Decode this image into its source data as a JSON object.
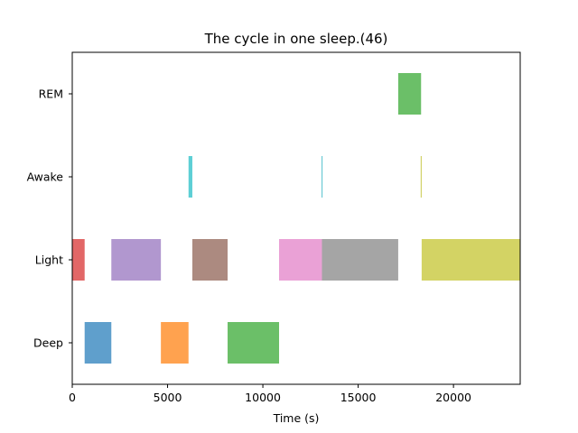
{
  "chart_data": {
    "type": "bar",
    "title": "The cycle in one sleep.(46)",
    "xlabel": "Time (s)",
    "ylabel": "",
    "xlim": [
      0,
      23500
    ],
    "x_ticks": [
      0,
      5000,
      10000,
      15000,
      20000
    ],
    "categories": [
      "Deep",
      "Light",
      "Awake",
      "REM"
    ],
    "grid": false,
    "segments": [
      {
        "stage": "Light",
        "start": 0,
        "end": 650,
        "color": "#e26767"
      },
      {
        "stage": "Deep",
        "start": 650,
        "end": 2050,
        "color": "#5f9fcc"
      },
      {
        "stage": "Light",
        "start": 2050,
        "end": 4650,
        "color": "#b197cf"
      },
      {
        "stage": "Deep",
        "start": 4650,
        "end": 6100,
        "color": "#ffa24f"
      },
      {
        "stage": "Awake",
        "start": 6100,
        "end": 6300,
        "color": "#5dcfd5"
      },
      {
        "stage": "Light",
        "start": 6300,
        "end": 8150,
        "color": "#ac8a80"
      },
      {
        "stage": "Deep",
        "start": 8150,
        "end": 10850,
        "color": "#6bbf68"
      },
      {
        "stage": "Light",
        "start": 10850,
        "end": 13100,
        "color": "#eaa1d6"
      },
      {
        "stage": "Awake",
        "start": 13080,
        "end": 13130,
        "color": "#5dc4d0"
      },
      {
        "stage": "Light",
        "start": 13100,
        "end": 17100,
        "color": "#a5a5a5"
      },
      {
        "stage": "REM",
        "start": 17100,
        "end": 18300,
        "color": "#6bbf68"
      },
      {
        "stage": "Awake",
        "start": 18280,
        "end": 18330,
        "color": "#cccc55"
      },
      {
        "stage": "Light",
        "start": 18330,
        "end": 23500,
        "color": "#d3d364"
      }
    ]
  }
}
